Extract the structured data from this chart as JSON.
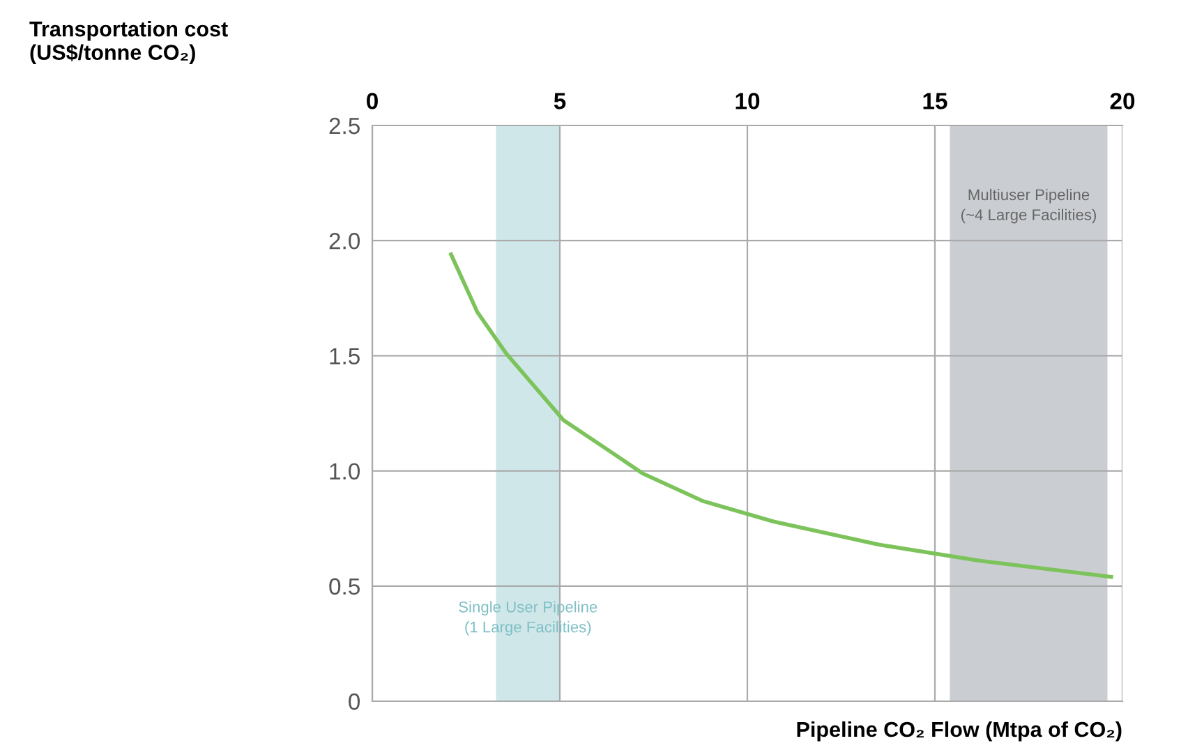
{
  "chart_data": {
    "type": "line",
    "ylabel": "Transportation cost\n(US$/tonne CO₂)",
    "xlabel": "Pipeline CO₂ Flow (Mtpa of CO₂)",
    "x": [
      2.1,
      2.8,
      3.57,
      5.1,
      6.2,
      7.2,
      8.8,
      10.7,
      13.5,
      16.2,
      19.7
    ],
    "series": [
      {
        "color": "#7dc35b",
        "values": [
          1.94,
          1.69,
          1.51,
          1.22,
          1.1,
          0.99,
          0.87,
          0.78,
          0.68,
          0.61,
          0.54
        ]
      }
    ],
    "xlim": [
      0,
      20
    ],
    "xticks": [
      0,
      5,
      10,
      15,
      20
    ],
    "ylim": [
      0,
      2.5
    ],
    "yticks": [
      {
        "value": 0,
        "label": "0"
      },
      0.5,
      {
        "value": 1,
        "label": "1.0"
      },
      1.5,
      {
        "value": 2,
        "label": "2.0"
      },
      2.5
    ],
    "bands": [
      {
        "axis": "x",
        "from": 3.3,
        "to": 5.0,
        "label": "Single User Pipeline\n(1 Large Facilities)",
        "color": "#cfe7e8"
      },
      {
        "axis": "x",
        "from": 15.4,
        "to": 19.6,
        "label": "Multiuser Pipeline\n(~4 Large Facilities)",
        "color": "#cacdd2"
      }
    ],
    "grid": true,
    "legend": false,
    "marker": "none",
    "line_style": "solid"
  }
}
